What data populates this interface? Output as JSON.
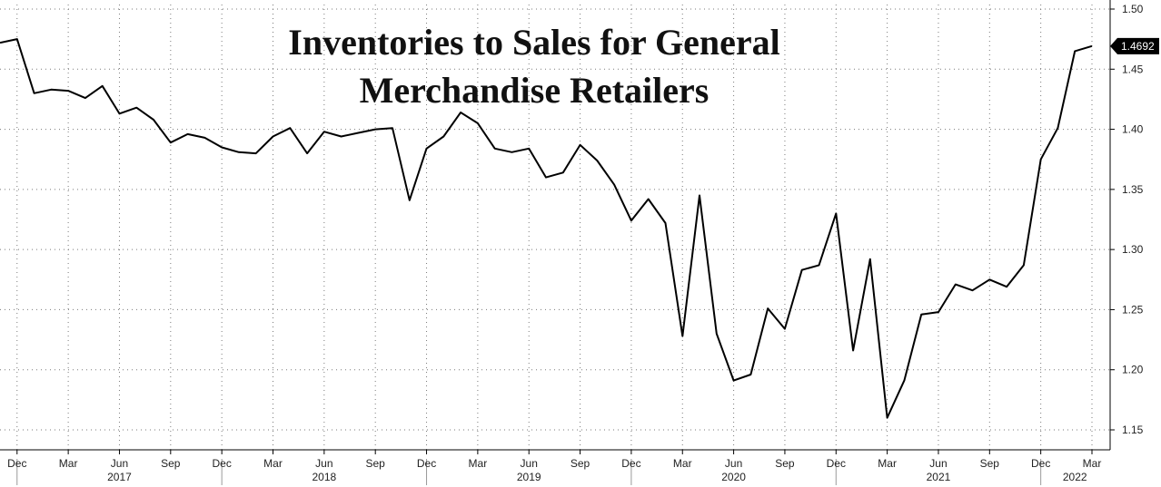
{
  "chart_data": {
    "type": "line",
    "title_lines": [
      "Inventories to Sales for General",
      "Merchandise Retailers"
    ],
    "xlabel": "",
    "ylabel": "",
    "ylim": [
      1.13,
      1.5
    ],
    "yticks": [
      1.15,
      1.2,
      1.25,
      1.3,
      1.35,
      1.4,
      1.45,
      1.5
    ],
    "ytick_labels": [
      "1.15",
      "1.20",
      "1.25",
      "1.30",
      "1.35",
      "1.40",
      "1.45",
      "1.50"
    ],
    "x_start": "2016-11",
    "month_ticks": [
      {
        "label": "Dec",
        "date": "2016-12"
      },
      {
        "label": "Mar",
        "date": "2017-03"
      },
      {
        "label": "Jun",
        "date": "2017-06"
      },
      {
        "label": "Sep",
        "date": "2017-09"
      },
      {
        "label": "Dec",
        "date": "2017-12"
      },
      {
        "label": "Mar",
        "date": "2018-03"
      },
      {
        "label": "Jun",
        "date": "2018-06"
      },
      {
        "label": "Sep",
        "date": "2018-09"
      },
      {
        "label": "Dec",
        "date": "2018-12"
      },
      {
        "label": "Mar",
        "date": "2019-03"
      },
      {
        "label": "Jun",
        "date": "2019-06"
      },
      {
        "label": "Sep",
        "date": "2019-09"
      },
      {
        "label": "Dec",
        "date": "2019-12"
      },
      {
        "label": "Mar",
        "date": "2020-03"
      },
      {
        "label": "Jun",
        "date": "2020-06"
      },
      {
        "label": "Sep",
        "date": "2020-09"
      },
      {
        "label": "Dec",
        "date": "2020-12"
      },
      {
        "label": "Mar",
        "date": "2021-03"
      },
      {
        "label": "Jun",
        "date": "2021-06"
      },
      {
        "label": "Sep",
        "date": "2021-09"
      },
      {
        "label": "Dec",
        "date": "2021-12"
      },
      {
        "label": "Mar",
        "date": "2022-03"
      }
    ],
    "year_labels": [
      {
        "label": "2017",
        "center": "2017-06"
      },
      {
        "label": "2018",
        "center": "2018-06"
      },
      {
        "label": "2019",
        "center": "2019-06"
      },
      {
        "label": "2020",
        "center": "2020-06"
      },
      {
        "label": "2021",
        "center": "2021-06"
      },
      {
        "label": "2022",
        "center": "2022-02"
      }
    ],
    "year_separators": [
      "2016-12",
      "2017-12",
      "2018-12",
      "2019-12",
      "2020-12",
      "2021-12"
    ],
    "series": [
      {
        "dates": [
          "2016-11",
          "2016-12",
          "2017-01",
          "2017-02",
          "2017-03",
          "2017-04",
          "2017-05",
          "2017-06",
          "2017-07",
          "2017-08",
          "2017-09",
          "2017-10",
          "2017-11",
          "2017-12",
          "2018-01",
          "2018-02",
          "2018-03",
          "2018-04",
          "2018-05",
          "2018-06",
          "2018-07",
          "2018-08",
          "2018-09",
          "2018-10",
          "2018-11",
          "2018-12",
          "2019-01",
          "2019-02",
          "2019-03",
          "2019-04",
          "2019-05",
          "2019-06",
          "2019-07",
          "2019-08",
          "2019-09",
          "2019-10",
          "2019-11",
          "2019-12",
          "2020-01",
          "2020-02",
          "2020-03",
          "2020-04",
          "2020-05",
          "2020-06",
          "2020-07",
          "2020-08",
          "2020-09",
          "2020-10",
          "2020-11",
          "2020-12",
          "2021-01",
          "2021-02",
          "2021-03",
          "2021-04",
          "2021-05",
          "2021-06",
          "2021-07",
          "2021-08",
          "2021-09",
          "2021-10",
          "2021-11",
          "2021-12",
          "2022-01",
          "2022-02",
          "2022-03"
        ],
        "values": [
          1.472,
          1.475,
          1.43,
          1.433,
          1.432,
          1.426,
          1.436,
          1.413,
          1.418,
          1.408,
          1.389,
          1.396,
          1.393,
          1.385,
          1.381,
          1.38,
          1.394,
          1.401,
          1.38,
          1.398,
          1.394,
          1.397,
          1.4,
          1.401,
          1.341,
          1.384,
          1.394,
          1.414,
          1.405,
          1.384,
          1.381,
          1.384,
          1.36,
          1.364,
          1.387,
          1.374,
          1.354,
          1.324,
          1.342,
          1.322,
          1.228,
          1.345,
          1.23,
          1.191,
          1.196,
          1.251,
          1.234,
          1.283,
          1.287,
          1.33,
          1.216,
          1.292,
          1.16,
          1.191,
          1.246,
          1.248,
          1.271,
          1.266,
          1.275,
          1.269,
          1.287,
          1.375,
          1.401,
          1.465,
          1.4692
        ]
      }
    ],
    "last_value_label": "1.4692",
    "grid": true,
    "y_axis_side": "right",
    "legend": "none"
  }
}
